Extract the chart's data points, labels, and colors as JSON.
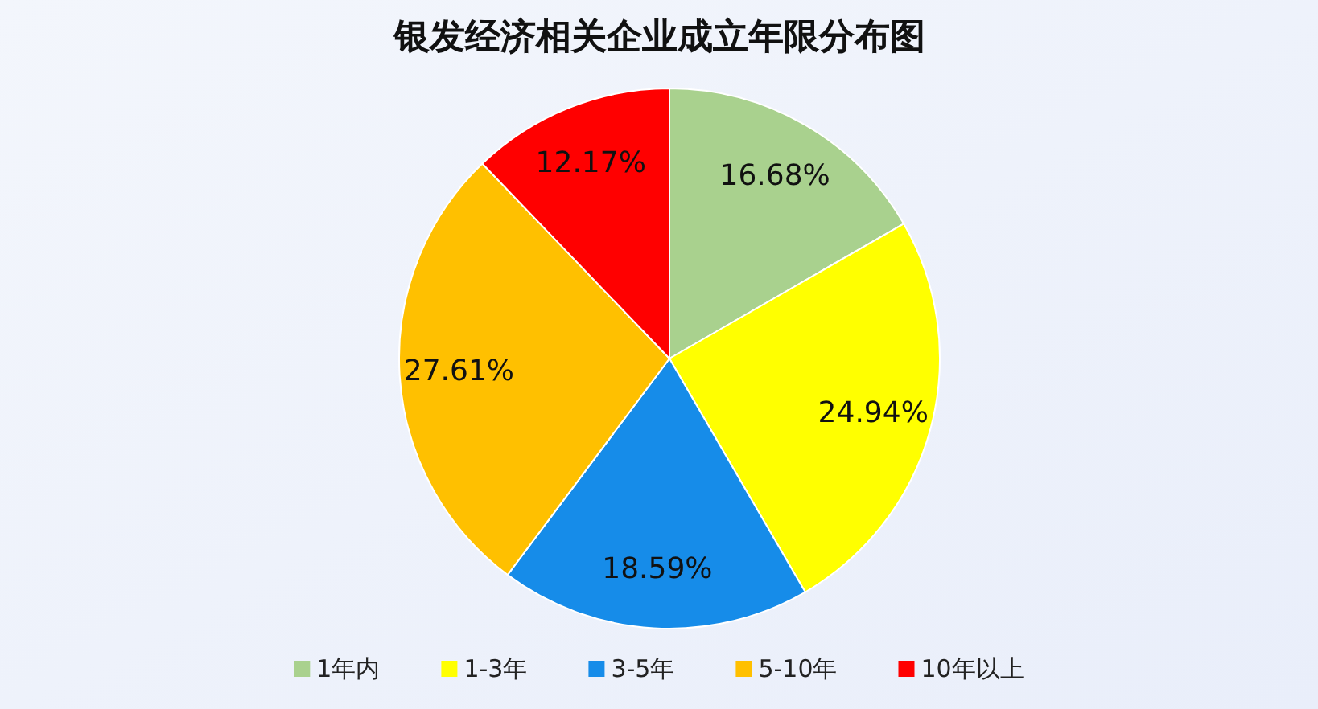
{
  "chart_data": {
    "type": "pie",
    "title": "银发经济相关企业成立年限分布图",
    "categories": [
      "1年内",
      "1-3年",
      "3-5年",
      "5-10年",
      "10年以上"
    ],
    "values": [
      16.68,
      24.94,
      18.59,
      27.61,
      12.17
    ],
    "colors": [
      "#a9d18e",
      "#ffff00",
      "#168ce9",
      "#ffc000",
      "#ff0000"
    ],
    "value_labels": [
      "16.68%",
      "24.94%",
      "18.59%",
      "27.61%",
      "12.17%"
    ],
    "legend": "bottom"
  }
}
